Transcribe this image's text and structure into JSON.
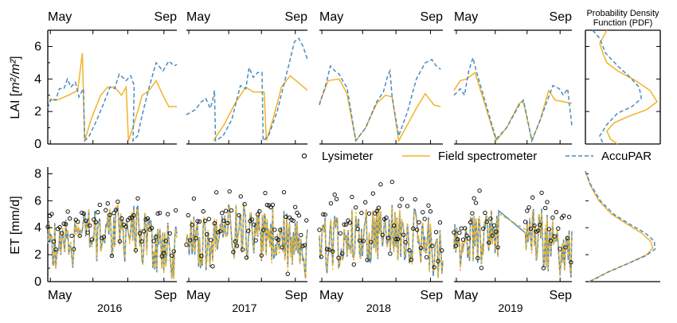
{
  "chart_data": {
    "type": "line",
    "layout": "two rows of four yearly panels plus a probability density column",
    "top_month_labels": [
      "May",
      "Sep"
    ],
    "bottom_month_labels": [
      "May",
      "Sep"
    ],
    "years": [
      "2016",
      "2017",
      "2018",
      "2019"
    ],
    "pdf_title_line1": "Probability Density",
    "pdf_title_line2": "Function (PDF)",
    "legend": {
      "placement": "between rows, right",
      "entries": [
        {
          "key": "lysimeter",
          "label": "Lysimeter"
        },
        {
          "key": "field",
          "label": "Field spectrometer"
        },
        {
          "key": "accupar",
          "label": "AccuPAR"
        }
      ]
    },
    "colors": {
      "field": "#f0b429",
      "accupar": "#4a8bbf",
      "lysimeter": "#000000"
    },
    "lai": {
      "ylabel_main": "LAI [",
      "ylabel_frac": "m²/m²",
      "ylabel_close": "]",
      "ylim": [
        0,
        7
      ],
      "yticks": [
        "0",
        "2",
        "4",
        "6"
      ],
      "panels": [
        {
          "year": "2016",
          "field": [
            [
              0,
              2.7
            ],
            [
              0.08,
              2.7
            ],
            [
              0.18,
              3.0
            ],
            [
              0.26,
              3.3
            ],
            [
              0.3,
              5.6
            ],
            [
              0.32,
              0.2
            ],
            [
              0.38,
              1.6
            ],
            [
              0.46,
              3.0
            ],
            [
              0.52,
              3.5
            ],
            [
              0.58,
              3.5
            ],
            [
              0.64,
              3.0
            ],
            [
              0.68,
              3.5
            ],
            [
              0.7,
              0.2
            ],
            [
              0.76,
              1.5
            ],
            [
              0.82,
              3.0
            ],
            [
              0.88,
              3.3
            ],
            [
              0.94,
              3.9
            ],
            [
              1,
              3.0
            ],
            [
              1.05,
              2.3
            ],
            [
              1.12,
              2.3
            ]
          ],
          "accupar": [
            [
              0,
              2.2
            ],
            [
              0.03,
              2.8
            ],
            [
              0.07,
              2.7
            ],
            [
              0.1,
              3.4
            ],
            [
              0.14,
              3.4
            ],
            [
              0.17,
              4.0
            ],
            [
              0.2,
              3.5
            ],
            [
              0.24,
              3.8
            ],
            [
              0.27,
              2.9
            ],
            [
              0.31,
              3.4
            ],
            [
              0.32,
              0.2
            ],
            [
              0.36,
              0.5
            ],
            [
              0.42,
              1.4
            ],
            [
              0.48,
              2.4
            ],
            [
              0.54,
              3.5
            ],
            [
              0.58,
              3.4
            ],
            [
              0.62,
              4.3
            ],
            [
              0.68,
              3.9
            ],
            [
              0.72,
              4.2
            ],
            [
              0.75,
              3.6
            ],
            [
              0.74,
              0.2
            ],
            [
              0.78,
              0.5
            ],
            [
              0.82,
              1.8
            ],
            [
              0.88,
              3.5
            ],
            [
              0.94,
              5.0
            ],
            [
              1,
              4.5
            ],
            [
              1.05,
              5.1
            ],
            [
              1.1,
              4.8
            ],
            [
              1.12,
              4.9
            ]
          ]
        },
        {
          "year": "2017",
          "field": [
            [
              0.25,
              0.2
            ],
            [
              0.35,
              1.2
            ],
            [
              0.45,
              2.5
            ],
            [
              0.55,
              3.5
            ],
            [
              0.62,
              3.2
            ],
            [
              0.72,
              3.2
            ],
            [
              0.74,
              0.2
            ],
            [
              0.8,
              1.5
            ],
            [
              0.88,
              3.5
            ],
            [
              0.96,
              4.2
            ],
            [
              1.05,
              3.7
            ],
            [
              1.12,
              3.3
            ]
          ],
          "accupar": [
            [
              0,
              1.8
            ],
            [
              0.08,
              2.1
            ],
            [
              0.14,
              2.6
            ],
            [
              0.18,
              2.8
            ],
            [
              0.22,
              2.2
            ],
            [
              0.24,
              2.6
            ],
            [
              0.26,
              3.3
            ],
            [
              0.27,
              0.2
            ],
            [
              0.34,
              0.5
            ],
            [
              0.42,
              1.5
            ],
            [
              0.5,
              3.6
            ],
            [
              0.55,
              3.4
            ],
            [
              0.58,
              4.7
            ],
            [
              0.62,
              4.1
            ],
            [
              0.66,
              4.4
            ],
            [
              0.7,
              4.4
            ],
            [
              0.71,
              0.2
            ],
            [
              0.76,
              0.5
            ],
            [
              0.84,
              2.0
            ],
            [
              0.9,
              3.6
            ],
            [
              0.96,
              5.2
            ],
            [
              1.0,
              6.3
            ],
            [
              1.04,
              6.5
            ],
            [
              1.08,
              6.0
            ],
            [
              1.12,
              5.2
            ]
          ]
        },
        {
          "year": "2018",
          "field": [
            [
              0,
              2.5
            ],
            [
              0.08,
              3.9
            ],
            [
              0.18,
              4.0
            ],
            [
              0.25,
              3.1
            ],
            [
              0.33,
              0.2
            ],
            [
              0.42,
              1.0
            ],
            [
              0.52,
              2.5
            ],
            [
              0.6,
              3.0
            ],
            [
              0.66,
              2.9
            ],
            [
              0.72,
              0.2
            ],
            [
              0.8,
              1.2
            ],
            [
              0.88,
              2.2
            ],
            [
              0.96,
              3.1
            ],
            [
              1.04,
              2.4
            ],
            [
              1.1,
              2.3
            ]
          ],
          "accupar": [
            [
              0,
              2.4
            ],
            [
              0.06,
              3.7
            ],
            [
              0.1,
              4.8
            ],
            [
              0.14,
              4.5
            ],
            [
              0.18,
              4.3
            ],
            [
              0.22,
              3.8
            ],
            [
              0.25,
              3.5
            ],
            [
              0.33,
              0.2
            ],
            [
              0.42,
              1.0
            ],
            [
              0.52,
              2.6
            ],
            [
              0.58,
              3.2
            ],
            [
              0.62,
              4.2
            ],
            [
              0.64,
              4.5
            ],
            [
              0.66,
              2.9
            ],
            [
              0.72,
              0.5
            ],
            [
              0.8,
              2.0
            ],
            [
              0.88,
              4.0
            ],
            [
              0.96,
              5.0
            ],
            [
              1.02,
              5.2
            ],
            [
              1.06,
              4.8
            ],
            [
              1.1,
              4.6
            ]
          ]
        },
        {
          "year": "2019",
          "field": [
            [
              0,
              3.3
            ],
            [
              0.06,
              3.9
            ],
            [
              0.12,
              4.0
            ],
            [
              0.2,
              4.4
            ],
            [
              0.4,
              0.2
            ],
            [
              0.5,
              1.0
            ],
            [
              0.62,
              2.5
            ],
            [
              0.66,
              2.6
            ],
            [
              0.74,
              0.2
            ],
            [
              0.82,
              1.5
            ],
            [
              0.9,
              3.3
            ],
            [
              0.96,
              2.7
            ],
            [
              1.04,
              2.6
            ],
            [
              1.12,
              2.5
            ]
          ],
          "accupar": [
            [
              0,
              3.0
            ],
            [
              0.06,
              3.4
            ],
            [
              0.1,
              3.0
            ],
            [
              0.14,
              4.5
            ],
            [
              0.18,
              5.3
            ],
            [
              0.22,
              4.3
            ],
            [
              0.4,
              0.3
            ],
            [
              0.5,
              1.0
            ],
            [
              0.62,
              2.4
            ],
            [
              0.66,
              2.7
            ],
            [
              0.74,
              0.2
            ],
            [
              0.82,
              1.5
            ],
            [
              0.9,
              2.9
            ],
            [
              0.94,
              3.6
            ],
            [
              1.0,
              3.4
            ],
            [
              1.04,
              3.0
            ],
            [
              1.08,
              3.4
            ],
            [
              1.12,
              1.1
            ]
          ]
        }
      ],
      "pdf": {
        "field": [
          [
            0.3,
            7
          ],
          [
            0.2,
            6.2
          ],
          [
            0.25,
            5.5
          ],
          [
            0.3,
            5.0
          ],
          [
            0.45,
            4.5
          ],
          [
            0.7,
            3.9
          ],
          [
            0.9,
            3.3
          ],
          [
            1.0,
            2.6
          ],
          [
            0.85,
            2.1
          ],
          [
            0.6,
            1.7
          ],
          [
            0.4,
            1.3
          ],
          [
            0.3,
            0.8
          ],
          [
            0.35,
            0.3
          ],
          [
            0.45,
            0
          ]
        ],
        "accupar": [
          [
            0.1,
            7
          ],
          [
            0.2,
            6.5
          ],
          [
            0.28,
            5.6
          ],
          [
            0.45,
            4.8
          ],
          [
            0.6,
            4.2
          ],
          [
            0.75,
            3.5
          ],
          [
            0.78,
            2.8
          ],
          [
            0.65,
            2.3
          ],
          [
            0.45,
            1.9
          ],
          [
            0.3,
            1.2
          ],
          [
            0.2,
            0.5
          ],
          [
            0.25,
            0
          ]
        ]
      }
    },
    "et": {
      "ylabel": "ET [mm/d]",
      "ylim": [
        0,
        8.5
      ],
      "yticks": [
        "0",
        "2",
        "4",
        "6",
        "8"
      ],
      "pdf": {
        "field": [
          [
            0,
            8.2
          ],
          [
            0.06,
            7.2
          ],
          [
            0.18,
            6.0
          ],
          [
            0.35,
            5.0
          ],
          [
            0.55,
            4.3
          ],
          [
            0.75,
            3.6
          ],
          [
            0.87,
            3.0
          ],
          [
            0.9,
            2.5
          ],
          [
            0.82,
            2.0
          ],
          [
            0.55,
            1.3
          ],
          [
            0.3,
            0.7
          ],
          [
            0.12,
            0.2
          ],
          [
            0.05,
            0
          ]
        ],
        "accupar": [
          [
            0,
            8.2
          ],
          [
            0.07,
            7.2
          ],
          [
            0.2,
            6.0
          ],
          [
            0.38,
            5.0
          ],
          [
            0.58,
            4.3
          ],
          [
            0.8,
            3.6
          ],
          [
            0.92,
            3.0
          ],
          [
            0.93,
            2.4
          ],
          [
            0.8,
            1.9
          ],
          [
            0.55,
            1.3
          ],
          [
            0.3,
            0.7
          ],
          [
            0.13,
            0.2
          ],
          [
            0.05,
            0
          ]
        ]
      }
    }
  }
}
